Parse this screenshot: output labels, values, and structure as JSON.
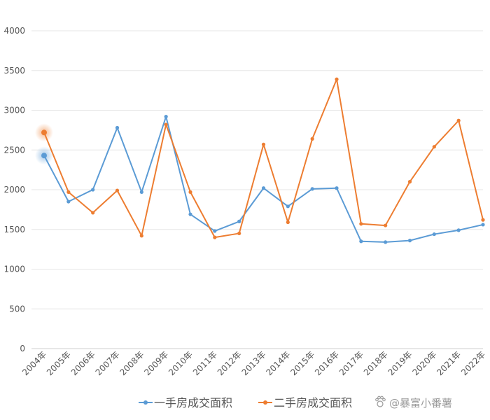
{
  "chart_data": {
    "type": "line",
    "categories": [
      "2004年",
      "2005年",
      "2006年",
      "2007年",
      "2008年",
      "2009年",
      "2010年",
      "2011年",
      "2012年",
      "2013年",
      "2014年",
      "2015年",
      "2016年",
      "2017年",
      "2018年",
      "2019年",
      "2020年",
      "2021年",
      "2022年"
    ],
    "ylim": [
      0,
      4000
    ],
    "yticks": [
      0,
      500,
      1000,
      1500,
      2000,
      2500,
      3000,
      3500,
      4000
    ],
    "grid": true,
    "legend_position": "bottom",
    "series": [
      {
        "name": "一手房成交面积",
        "color": "#5b9bd5",
        "values": [
          2430,
          1850,
          2000,
          2780,
          1970,
          2920,
          1690,
          1480,
          1600,
          2020,
          1790,
          2010,
          2020,
          1350,
          1340,
          1360,
          1440,
          1490,
          1560
        ]
      },
      {
        "name": "二手房成交面积",
        "color": "#ed7d31",
        "values": [
          2720,
          1970,
          1710,
          1990,
          1420,
          2820,
          1970,
          1400,
          1450,
          2570,
          1590,
          2640,
          3390,
          1570,
          1550,
          2100,
          2540,
          2870,
          1620
        ]
      }
    ]
  },
  "watermark": {
    "text": "@暴富小番薯",
    "icon": "paw-icon"
  }
}
